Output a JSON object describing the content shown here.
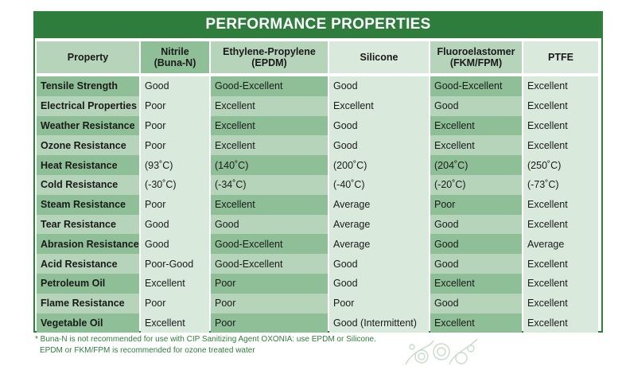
{
  "title": "PERFORMANCE PROPERTIES",
  "columns": [
    {
      "label": "Property"
    },
    {
      "label": "Nitrile\n(Buna-N)"
    },
    {
      "label": "Ethylene-Propylene\n(EPDM)"
    },
    {
      "label": "Silicone"
    },
    {
      "label": "Fluoroelastomer\n(FKM/FPM)"
    },
    {
      "label": "PTFE"
    }
  ],
  "rows": [
    {
      "property": "Tensile Strength",
      "values": [
        "Good",
        "Good-Excellent",
        "Good",
        "Good-Excellent",
        "Excellent"
      ]
    },
    {
      "property": "Electrical Properties",
      "values": [
        "Poor",
        "Excellent",
        "Excellent",
        "Good",
        "Excellent"
      ]
    },
    {
      "property": "Weather Resistance",
      "values": [
        "Poor",
        "Excellent",
        "Good",
        "Excellent",
        "Excellent"
      ]
    },
    {
      "property": "Ozone Resistance",
      "values": [
        "Poor",
        "Excellent",
        "Good",
        "Excellent",
        "Excellent"
      ]
    },
    {
      "property": "Heat Resistance",
      "values": [
        "(93˚C)",
        "(140˚C)",
        "(200˚C)",
        "(204˚C)",
        "(250˚C)"
      ]
    },
    {
      "property": "Cold Resistance",
      "values": [
        "(-30˚C)",
        "(-34˚C)",
        "(-40˚C)",
        "(-20˚C)",
        "(-73˚C)"
      ]
    },
    {
      "property": "Steam Resistance",
      "values": [
        "Poor",
        "Excellent",
        "Average",
        "Poor",
        "Excellent"
      ]
    },
    {
      "property": "Tear Resistance",
      "values": [
        "Good",
        "Good",
        "Average",
        "Good",
        "Excellent"
      ]
    },
    {
      "property": "Abrasion Resistance",
      "values": [
        "Good",
        "Good-Excellent",
        "Average",
        "Good",
        "Average"
      ]
    },
    {
      "property": "Acid Resistance",
      "values": [
        "Poor-Good",
        "Good-Excellent",
        "Good",
        "Good",
        "Excellent"
      ]
    },
    {
      "property": "Petroleum Oil",
      "values": [
        "Excellent",
        "Poor",
        "Good",
        "Excellent",
        "Excellent"
      ]
    },
    {
      "property": "Flame Resistance",
      "values": [
        "Poor",
        "Poor",
        "Poor",
        "Good",
        "Excellent"
      ]
    },
    {
      "property": "Vegetable Oil",
      "values": [
        "Excellent",
        "Poor",
        "Good (Intermittent)",
        "Excellent",
        "Excellent"
      ]
    }
  ],
  "footnote": [
    "* Buna-N is not recommended for use with CIP Sanitizing Agent OXONIA: use EPDM or Silicone.",
    "EPDM or FKM/FPM is recommended for ozone treated water"
  ],
  "colors": {
    "brand_green": "#2e7d3c",
    "dark_cell": "#8fbf97",
    "medium_cell": "#b5d4ba",
    "light_cell": "#d9e9dc"
  }
}
